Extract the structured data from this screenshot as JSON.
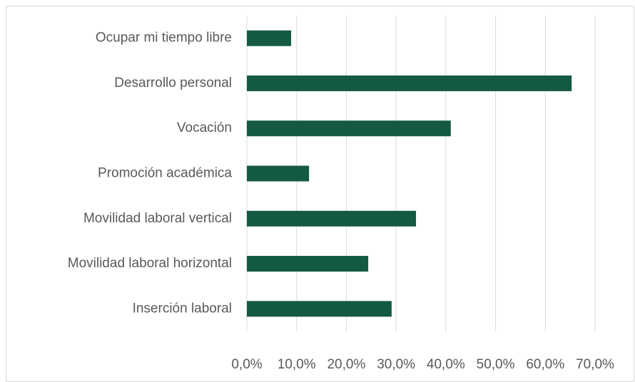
{
  "chart_data": {
    "type": "bar",
    "orientation": "horizontal",
    "categories": [
      "Ocupar mi tiempo libre",
      "Desarrollo personal ",
      "Vocación",
      "Promoción académica ",
      "Movilidad laboral vertical",
      "Movilidad laboral horizontal ",
      "Inserción laboral"
    ],
    "values": [
      8.9,
      65.3,
      41.0,
      12.5,
      34.0,
      24.4,
      29.1
    ],
    "color": "#145a41",
    "xlim": [
      0,
      70
    ],
    "xticks": [
      {
        "value": 0,
        "label": "0,0%"
      },
      {
        "value": 10,
        "label": "10,0%"
      },
      {
        "value": 20,
        "label": "20,0%"
      },
      {
        "value": 30,
        "label": "30,0%"
      },
      {
        "value": 40,
        "label": "40,0%"
      },
      {
        "value": 50,
        "label": "50,0%"
      },
      {
        "value": 60,
        "label": "60,0%"
      },
      {
        "value": 70,
        "label": "70,0%"
      }
    ],
    "grid": true
  }
}
